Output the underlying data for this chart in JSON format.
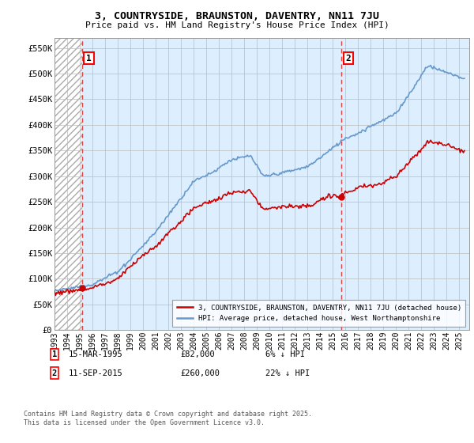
{
  "title": "3, COUNTRYSIDE, BRAUNSTON, DAVENTRY, NN11 7JU",
  "subtitle": "Price paid vs. HM Land Registry's House Price Index (HPI)",
  "legend_label_red": "3, COUNTRYSIDE, BRAUNSTON, DAVENTRY, NN11 7JU (detached house)",
  "legend_label_blue": "HPI: Average price, detached house, West Northamptonshire",
  "annotation1_date": "15-MAR-1995",
  "annotation1_price": "£82,000",
  "annotation1_hpi": "6% ↓ HPI",
  "annotation2_date": "11-SEP-2015",
  "annotation2_price": "£260,000",
  "annotation2_hpi": "22% ↓ HPI",
  "footnote": "Contains HM Land Registry data © Crown copyright and database right 2025.\nThis data is licensed under the Open Government Licence v3.0.",
  "ylim": [
    0,
    570000
  ],
  "yticks": [
    0,
    50000,
    100000,
    150000,
    200000,
    250000,
    300000,
    350000,
    400000,
    450000,
    500000,
    550000
  ],
  "ytick_labels": [
    "£0",
    "£50K",
    "£100K",
    "£150K",
    "£200K",
    "£250K",
    "£300K",
    "£350K",
    "£400K",
    "£450K",
    "£500K",
    "£550K"
  ],
  "color_red": "#cc0000",
  "color_blue": "#6699cc",
  "color_blue_fill": "#ddeeff",
  "color_dashed_red": "#dd4444",
  "background_color": "#ffffff",
  "grid_color": "#bbbbbb",
  "xlim_left": 1993.0,
  "xlim_right": 2025.8,
  "sale1_year": 1995.21,
  "sale1_price": 82000,
  "sale2_year": 2015.71,
  "sale2_price": 260000
}
